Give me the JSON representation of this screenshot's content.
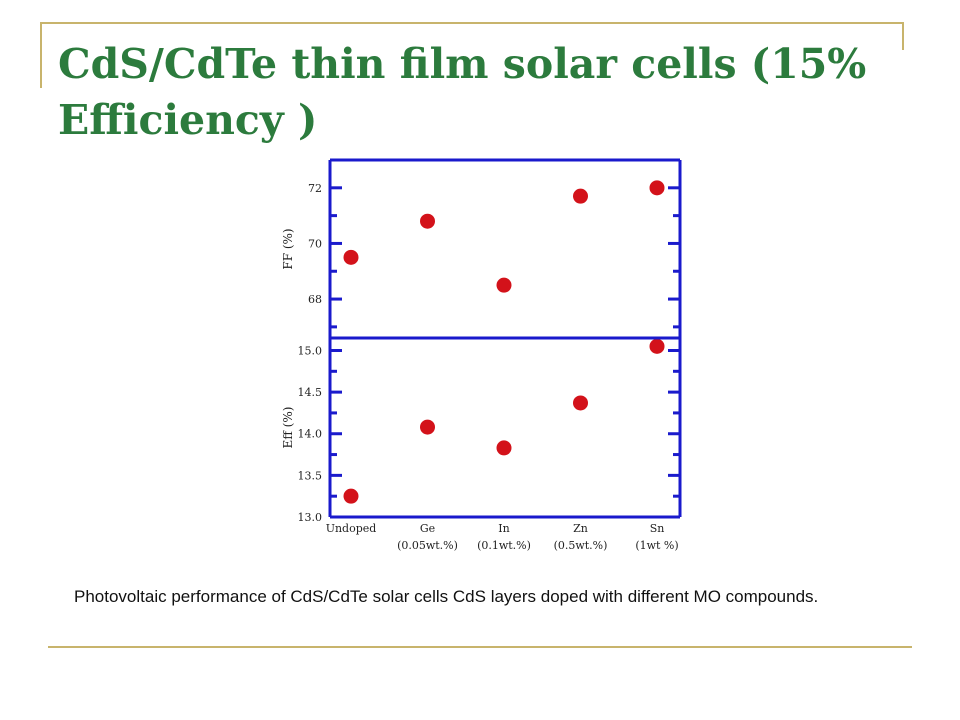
{
  "slide": {
    "title": "CdS/CdTe thin film solar cells (15% Efficiency )",
    "caption": "Photovoltaic performance of CdS/CdTe solar cells CdS layers doped with different MO compounds."
  },
  "colors": {
    "accent_rule": "#c8b46c",
    "title": "#2c7b3d",
    "axis_frame": "#1a1acc",
    "marker": "#d3121a"
  },
  "chart_data": [
    {
      "type": "scatter",
      "panel": "top",
      "ylabel": "FF (%)",
      "ylim": [
        66.6,
        73.0
      ],
      "yticks": [
        {
          "value": 68,
          "label": "68"
        },
        {
          "value": 70,
          "label": "70"
        },
        {
          "value": 72,
          "label": "72"
        }
      ],
      "categories": [
        "Undoped",
        "Ge",
        "In",
        "Zn",
        "Sn"
      ],
      "values": [
        69.5,
        70.8,
        68.5,
        71.7,
        72.0
      ]
    },
    {
      "type": "scatter",
      "panel": "bottom",
      "ylabel": "Eff (%)",
      "ylim": [
        13.0,
        15.15
      ],
      "yticks": [
        {
          "value": 13.0,
          "label": "13.0"
        },
        {
          "value": 13.5,
          "label": "13.5"
        },
        {
          "value": 14.0,
          "label": "14.0"
        },
        {
          "value": 14.5,
          "label": "14.5"
        },
        {
          "value": 15.0,
          "label": "15.0"
        }
      ],
      "categories": [
        "Undoped",
        "Ge",
        "In",
        "Zn",
        "Sn"
      ],
      "category_sublabels": [
        "",
        "(0.05wt.%)",
        "(0.1wt.%)",
        "(0.5wt.%)",
        "(1wt %)"
      ],
      "values": [
        13.25,
        14.08,
        13.83,
        14.37,
        15.05
      ]
    }
  ]
}
